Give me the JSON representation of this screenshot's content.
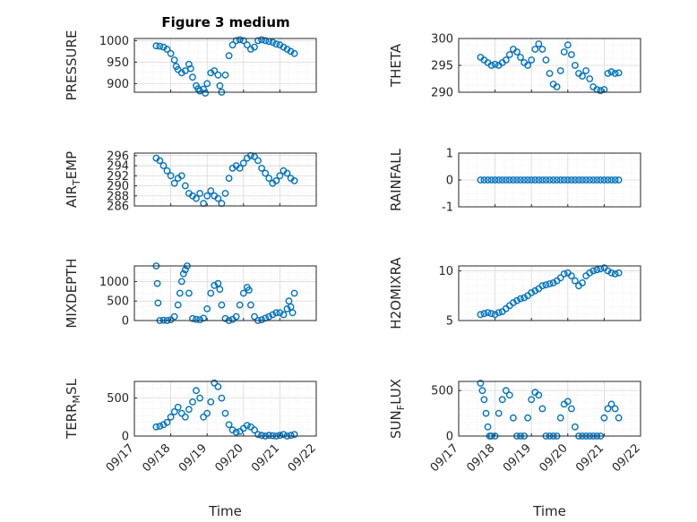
{
  "figure_title": "Figure 3 medium",
  "chart_data": [
    {
      "type": "scatter",
      "ylabel": "PRESSURE",
      "ylim": [
        880,
        1005
      ],
      "yticks": [
        900,
        950,
        1000
      ],
      "xlim": [
        0,
        5
      ],
      "x": [
        0.6,
        0.7,
        0.8,
        0.9,
        1.0,
        1.1,
        1.15,
        1.2,
        1.3,
        1.4,
        1.5,
        1.55,
        1.6,
        1.7,
        1.75,
        1.8,
        1.9,
        1.95,
        2.0,
        2.1,
        2.2,
        2.3,
        2.35,
        2.4,
        2.5,
        2.6,
        2.7,
        2.8,
        2.9,
        3.0,
        3.1,
        3.2,
        3.3,
        3.4,
        3.5,
        3.6,
        3.7,
        3.8,
        3.9,
        4.0,
        4.1,
        4.2,
        4.3,
        4.4
      ],
      "y": [
        988,
        987,
        985,
        980,
        970,
        955,
        940,
        933,
        925,
        930,
        945,
        935,
        915,
        895,
        888,
        883,
        887,
        878,
        900,
        925,
        930,
        920,
        895,
        880,
        920,
        965,
        990,
        1000,
        1002,
        1000,
        990,
        980,
        985,
        1000,
        1002,
        1000,
        998,
        996,
        992,
        990,
        985,
        980,
        975,
        970
      ]
    },
    {
      "type": "scatter",
      "ylabel": "THETA",
      "ylim": [
        290,
        300
      ],
      "yticks": [
        290,
        295,
        300
      ],
      "xlim": [
        0,
        5
      ],
      "x": [
        0.6,
        0.7,
        0.8,
        0.9,
        1.0,
        1.1,
        1.2,
        1.3,
        1.4,
        1.5,
        1.6,
        1.7,
        1.8,
        1.9,
        2.0,
        2.1,
        2.2,
        2.3,
        2.4,
        2.5,
        2.6,
        2.7,
        2.8,
        2.9,
        3.0,
        3.1,
        3.2,
        3.3,
        3.4,
        3.5,
        3.6,
        3.7,
        3.8,
        3.9,
        4.0,
        4.1,
        4.2,
        4.3,
        4.4
      ],
      "y": [
        296.5,
        296.0,
        295.5,
        295.0,
        295.2,
        295.0,
        295.5,
        296.0,
        297.0,
        298.0,
        297.5,
        296.5,
        295.5,
        295.0,
        296.0,
        298.0,
        299.0,
        298.0,
        296.0,
        293.5,
        291.5,
        291.0,
        294.0,
        297.5,
        298.8,
        297.0,
        295.0,
        293.5,
        293.0,
        294.0,
        292.5,
        291.0,
        290.5,
        290.3,
        290.5,
        293.5,
        293.8,
        293.5,
        293.6
      ]
    },
    {
      "type": "scatter",
      "ylabel": "AIR_TEMP",
      "ylim": [
        286,
        296.5
      ],
      "yticks": [
        286,
        288,
        290,
        292,
        294,
        296
      ],
      "xlim": [
        0,
        5
      ],
      "x": [
        0.6,
        0.7,
        0.8,
        0.9,
        1.0,
        1.1,
        1.2,
        1.3,
        1.4,
        1.5,
        1.6,
        1.7,
        1.8,
        1.9,
        2.0,
        2.1,
        2.2,
        2.3,
        2.4,
        2.5,
        2.6,
        2.7,
        2.8,
        2.9,
        3.0,
        3.1,
        3.2,
        3.3,
        3.4,
        3.5,
        3.6,
        3.7,
        3.8,
        3.9,
        4.0,
        4.1,
        4.2,
        4.3,
        4.4
      ],
      "y": [
        295.5,
        295.0,
        294.0,
        293.0,
        292.0,
        290.5,
        291.5,
        292.0,
        290.0,
        288.5,
        288.0,
        287.5,
        288.5,
        286.5,
        288.0,
        289.0,
        288.0,
        287.5,
        286.5,
        288.5,
        291.5,
        293.5,
        294.0,
        293.5,
        294.5,
        295.5,
        296.0,
        295.8,
        295.0,
        293.5,
        292.5,
        291.5,
        290.5,
        291.0,
        292.0,
        293.0,
        292.5,
        291.5,
        291.0
      ]
    },
    {
      "type": "scatter",
      "ylabel": "RAINFALL",
      "ylim": [
        -1,
        1
      ],
      "yticks": [
        -1,
        0,
        1
      ],
      "xlim": [
        0,
        5
      ],
      "x": [
        0.6,
        0.7,
        0.8,
        0.9,
        1.0,
        1.1,
        1.2,
        1.3,
        1.4,
        1.5,
        1.6,
        1.7,
        1.8,
        1.9,
        2.0,
        2.1,
        2.2,
        2.3,
        2.4,
        2.5,
        2.6,
        2.7,
        2.8,
        2.9,
        3.0,
        3.1,
        3.2,
        3.3,
        3.4,
        3.5,
        3.6,
        3.7,
        3.8,
        3.9,
        4.0,
        4.1,
        4.2,
        4.3,
        4.4
      ],
      "y": [
        0,
        0,
        0,
        0,
        0,
        0,
        0,
        0,
        0,
        0,
        0,
        0,
        0,
        0,
        0,
        0,
        0,
        0,
        0,
        0,
        0,
        0,
        0,
        0,
        0,
        0,
        0,
        0,
        0,
        0,
        0,
        0,
        0,
        0,
        0,
        0,
        0,
        0,
        0
      ]
    },
    {
      "type": "scatter",
      "ylabel": "MIXDEPTH",
      "ylim": [
        0,
        1400
      ],
      "yticks": [
        0,
        500,
        1000
      ],
      "xlim": [
        0,
        5
      ],
      "x": [
        0.6,
        0.63,
        0.65,
        0.7,
        0.8,
        0.9,
        1.0,
        1.1,
        1.2,
        1.25,
        1.3,
        1.35,
        1.4,
        1.45,
        1.5,
        1.6,
        1.7,
        1.8,
        1.9,
        2.0,
        2.1,
        2.2,
        2.3,
        2.35,
        2.4,
        2.5,
        2.6,
        2.7,
        2.8,
        2.9,
        3.0,
        3.1,
        3.15,
        3.2,
        3.3,
        3.4,
        3.5,
        3.6,
        3.7,
        3.8,
        3.9,
        4.0,
        4.1,
        4.2,
        4.25,
        4.3,
        4.35,
        4.4
      ],
      "y": [
        1400,
        950,
        450,
        0,
        10,
        0,
        20,
        100,
        400,
        700,
        1000,
        1200,
        1300,
        1400,
        700,
        50,
        30,
        20,
        60,
        300,
        700,
        900,
        950,
        800,
        400,
        50,
        0,
        30,
        100,
        400,
        700,
        850,
        780,
        400,
        100,
        0,
        20,
        60,
        100,
        150,
        200,
        200,
        150,
        300,
        500,
        350,
        200,
        700
      ]
    },
    {
      "type": "scatter",
      "ylabel": "H2OMIXRA",
      "ylim": [
        5,
        10.5
      ],
      "yticks": [
        5,
        10
      ],
      "xlim": [
        0,
        5
      ],
      "x": [
        0.6,
        0.7,
        0.8,
        0.9,
        1.0,
        1.1,
        1.2,
        1.3,
        1.4,
        1.5,
        1.6,
        1.7,
        1.8,
        1.9,
        2.0,
        2.1,
        2.2,
        2.3,
        2.4,
        2.5,
        2.6,
        2.7,
        2.8,
        2.9,
        3.0,
        3.1,
        3.2,
        3.3,
        3.4,
        3.5,
        3.6,
        3.7,
        3.8,
        3.9,
        4.0,
        4.1,
        4.2,
        4.3,
        4.4
      ],
      "y": [
        5.6,
        5.7,
        5.8,
        5.7,
        5.6,
        5.8,
        5.9,
        6.2,
        6.5,
        6.8,
        7.0,
        7.2,
        7.3,
        7.5,
        7.8,
        8.0,
        8.2,
        8.5,
        8.6,
        8.7,
        8.8,
        9.0,
        9.3,
        9.7,
        9.8,
        9.5,
        9.0,
        8.5,
        8.8,
        9.5,
        9.8,
        10.0,
        10.1,
        10.2,
        10.3,
        10.0,
        9.8,
        9.7,
        9.8
      ]
    },
    {
      "type": "scatter",
      "ylabel": "TERR_MSL",
      "ylim": [
        0,
        720
      ],
      "yticks": [
        0,
        500
      ],
      "xlim": [
        0,
        5
      ],
      "x": [
        0.6,
        0.7,
        0.8,
        0.9,
        1.0,
        1.1,
        1.2,
        1.3,
        1.4,
        1.5,
        1.6,
        1.7,
        1.8,
        1.9,
        2.0,
        2.1,
        2.2,
        2.3,
        2.4,
        2.5,
        2.6,
        2.7,
        2.8,
        2.9,
        3.0,
        3.1,
        3.2,
        3.3,
        3.4,
        3.5,
        3.6,
        3.7,
        3.8,
        3.9,
        4.0,
        4.1,
        4.2,
        4.3,
        4.4
      ],
      "y": [
        120,
        130,
        150,
        180,
        250,
        320,
        380,
        300,
        250,
        350,
        450,
        600,
        500,
        250,
        300,
        450,
        700,
        650,
        500,
        300,
        150,
        80,
        50,
        60,
        100,
        140,
        120,
        80,
        20,
        10,
        0,
        10,
        5,
        0,
        10,
        20,
        0,
        10,
        20
      ]
    },
    {
      "type": "scatter",
      "ylabel": "SUN_FLUX",
      "ylim": [
        0,
        600
      ],
      "yticks": [
        0,
        500
      ],
      "xlim": [
        0,
        5
      ],
      "x": [
        0.6,
        0.65,
        0.7,
        0.75,
        0.8,
        0.85,
        0.9,
        1.0,
        1.1,
        1.2,
        1.3,
        1.4,
        1.5,
        1.6,
        1.7,
        1.8,
        1.9,
        2.0,
        2.1,
        2.2,
        2.3,
        2.4,
        2.5,
        2.6,
        2.7,
        2.8,
        2.9,
        3.0,
        3.1,
        3.2,
        3.3,
        3.4,
        3.5,
        3.6,
        3.7,
        3.8,
        3.9,
        4.0,
        4.1,
        4.2,
        4.3,
        4.4
      ],
      "y": [
        580,
        500,
        400,
        250,
        100,
        0,
        0,
        0,
        250,
        400,
        500,
        450,
        200,
        0,
        0,
        0,
        200,
        400,
        480,
        450,
        300,
        0,
        0,
        0,
        0,
        200,
        350,
        380,
        300,
        100,
        0,
        0,
        0,
        0,
        0,
        0,
        0,
        200,
        300,
        350,
        300,
        200
      ]
    }
  ],
  "x_axis": {
    "ticklabels": [
      "09/17",
      "09/18",
      "09/19",
      "09/20",
      "09/21",
      "09/22"
    ],
    "label": "Time"
  },
  "colors": {
    "marker": "#0072BD",
    "grid": "#d9d9d9",
    "axis": "#262626"
  }
}
